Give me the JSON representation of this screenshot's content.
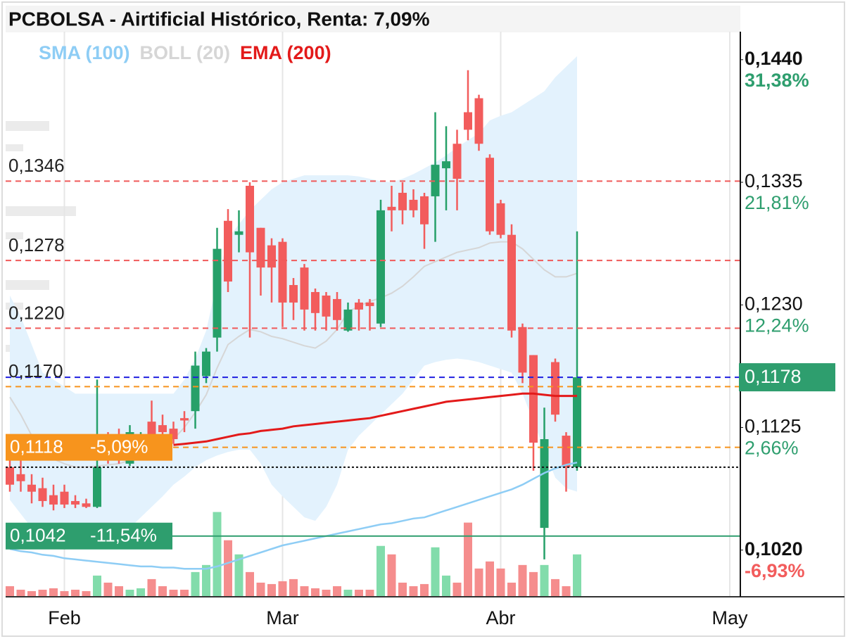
{
  "chart_data": {
    "type": "candlestick",
    "title": "PCBOLSA - Airtificial Histórico, Renta: 7,09%",
    "categories": [
      null,
      null,
      null,
      null,
      null,
      "Feb",
      null,
      null,
      null,
      null,
      null,
      null,
      null,
      null,
      null,
      null,
      null,
      null,
      null,
      null,
      null,
      null,
      null,
      null,
      null,
      "Mar",
      null,
      null,
      null,
      null,
      null,
      null,
      null,
      null,
      null,
      null,
      null,
      null,
      null,
      null,
      null,
      null,
      null,
      null,
      null,
      "Abr",
      null,
      null,
      null,
      null,
      null,
      null,
      null,
      null,
      null,
      null,
      null,
      null,
      null,
      null,
      null,
      null,
      null,
      null,
      null,
      null,
      "May"
    ],
    "open": [
      0.1101,
      0.1095,
      0.1086,
      0.1083,
      0.1077,
      0.108,
      0.1072,
      0.107,
      0.1067,
      0.1125,
      0.1122,
      0.1104,
      0.1116,
      0.114,
      0.1137,
      0.1134,
      0.1143,
      0.1149,
      0.1179,
      0.1212,
      0.1312,
      0.13,
      0.1342,
      0.1306,
      0.1291,
      0.1294,
      0.1257,
      0.1272,
      0.1251,
      0.1248,
      0.1245,
      0.1218,
      0.1242,
      0.1242,
      0.1224,
      0.1324,
      0.1336,
      0.133,
      0.1333,
      0.1333,
      0.1357,
      0.1378,
      0.1405,
      0.1417,
      0.1366,
      0.1327,
      0.13,
      0.1221,
      0.1197,
      0.1049,
      0.1191,
      0.1128,
      0.1101,
      null,
      null,
      null,
      null,
      null,
      null,
      null,
      null,
      null,
      null,
      null,
      null,
      null,
      null
    ],
    "high": [
      0.1116,
      0.1107,
      0.1095,
      0.1092,
      0.1086,
      0.1086,
      0.1077,
      0.1074,
      0.1176,
      0.1131,
      0.1134,
      0.1137,
      0.1131,
      0.1158,
      0.1146,
      0.114,
      0.1149,
      0.12,
      0.1203,
      0.1306,
      0.1322,
      0.1321,
      0.1345,
      0.1306,
      0.1297,
      0.1297,
      0.1263,
      0.1275,
      0.1254,
      0.1251,
      0.1251,
      0.1242,
      0.1245,
      0.1245,
      0.133,
      0.1342,
      0.1345,
      0.1339,
      0.1336,
      0.1405,
      0.1393,
      0.139,
      0.1441,
      0.142,
      0.1369,
      0.133,
      0.1309,
      0.1224,
      0.1197,
      0.1152,
      0.1194,
      0.1131,
      0.1303,
      null,
      null,
      null,
      null,
      null,
      null,
      null,
      null,
      null,
      null,
      null,
      null,
      null,
      null
    ],
    "low": [
      0.108,
      0.108,
      0.107,
      0.1067,
      0.1064,
      0.1066,
      0.1066,
      0.1066,
      0.1066,
      0.1104,
      0.1104,
      0.1102,
      0.1111,
      0.1119,
      0.1128,
      0.1121,
      0.1131,
      0.1134,
      0.1173,
      0.12,
      0.1251,
      0.1285,
      0.1212,
      0.1248,
      0.1242,
      0.1221,
      0.1227,
      0.1218,
      0.1218,
      0.1218,
      0.1218,
      0.1217,
      0.1218,
      0.1218,
      0.1221,
      0.1303,
      0.1309,
      0.1315,
      0.1288,
      0.1294,
      0.1321,
      0.1321,
      0.1381,
      0.1372,
      0.13,
      0.1297,
      0.1212,
      0.1173,
      0.1098,
      0.1022,
      0.114,
      0.108,
      0.1098,
      null,
      null,
      null,
      null,
      null,
      null,
      null,
      null,
      null,
      null,
      null,
      null,
      null,
      null
    ],
    "close": [
      0.1086,
      0.1089,
      0.108,
      0.1072,
      0.1069,
      0.1069,
      0.1069,
      0.1067,
      0.1101,
      0.111,
      0.1107,
      0.1131,
      0.1125,
      0.1123,
      0.1131,
      0.1125,
      0.1141,
      0.1188,
      0.12,
      0.1288,
      0.126,
      0.1303,
      0.1285,
      0.1272,
      0.1272,
      0.1242,
      0.1242,
      0.1236,
      0.1233,
      0.123,
      0.1227,
      0.1236,
      0.1236,
      0.1239,
      0.1321,
      0.1321,
      0.1321,
      0.1321,
      0.1309,
      0.136,
      0.1363,
      0.1348,
      0.139,
      0.1378,
      0.1303,
      0.13,
      0.1218,
      0.1182,
      0.1122,
      0.1125,
      0.1146,
      0.1101,
      0.1178,
      null,
      null,
      null,
      null,
      null,
      null,
      null,
      null,
      null,
      null,
      null,
      null,
      null,
      null
    ],
    "volume": [
      15,
      10,
      8,
      10,
      12,
      8,
      10,
      8,
      30,
      20,
      15,
      10,
      12,
      25,
      15,
      10,
      10,
      35,
      45,
      120,
      80,
      60,
      35,
      20,
      18,
      22,
      25,
      15,
      12,
      10,
      15,
      10,
      10,
      10,
      72,
      60,
      20,
      15,
      18,
      70,
      30,
      20,
      105,
      40,
      50,
      40,
      20,
      45,
      35,
      45,
      25,
      15,
      60,
      null,
      null,
      null,
      null,
      null,
      null,
      null,
      null,
      null,
      null,
      null,
      null,
      null,
      null
    ],
    "volume_lim": [
      0,
      800
    ],
    "up_color": "#26a069",
    "down_color": "#f25c5c",
    "volume_up_color": "#82dcab",
    "volume_down_color": "#f58d8d",
    "ylim": [
      0.099,
      0.1474
    ],
    "y2lim": [
      0.098,
      0.1464
    ],
    "y2ticks": [
      {
        "value": 0.144,
        "label": "0,1440"
      },
      {
        "value": 0.1335,
        "label": "0,1335"
      },
      {
        "value": 0.123,
        "label": "0,1230"
      },
      {
        "value": 0.1125,
        "label": "0,1125"
      },
      {
        "value": 0.102,
        "label": "0,1020"
      }
    ],
    "y2tick_pct_labels": [
      "31,38%",
      "21,81%",
      "12,24%",
      "2,66%",
      "-6,93%"
    ],
    "y2tick_pct_colors": [
      "#2e9e6e",
      "#2e9e6e",
      "#2e9e6e",
      "#2e9e6e",
      "#f25c5c"
    ],
    "indicators": [
      {
        "name": "SMA (100)",
        "color": "#8ecdf5",
        "values": [
          0.1031,
          0.1029,
          0.1028,
          0.1026,
          0.1025,
          0.1023,
          0.1022,
          0.1021,
          0.102,
          0.1019,
          0.1018,
          0.1017,
          0.1016,
          0.1016,
          0.1015,
          0.1015,
          0.1014,
          0.1014,
          0.1014,
          0.1016,
          0.1019,
          0.1022,
          0.1025,
          0.1028,
          0.1031,
          0.1034,
          0.1036,
          0.1038,
          0.104,
          0.1042,
          0.1044,
          0.1046,
          0.1048,
          0.105,
          0.1052,
          0.1053,
          0.1055,
          0.1057,
          0.1058,
          0.1061,
          0.1064,
          0.1067,
          0.107,
          0.1073,
          0.1076,
          0.1079,
          0.1082,
          0.1086,
          0.1091,
          0.1096,
          0.11,
          0.1103,
          0.1105,
          null,
          null,
          null,
          null,
          null,
          null,
          null,
          null,
          null,
          null,
          null,
          null,
          null,
          null
        ]
      },
      {
        "name": "BOLL (20)",
        "color": "#d6d6d6",
        "fill": "#e3f2fd",
        "upper": [
          0.1248,
          0.123,
          0.1206,
          0.1182,
          0.1176,
          0.117,
          0.1164,
          0.1164,
          0.1164,
          0.1164,
          0.1164,
          0.1164,
          0.1164,
          0.1164,
          0.1164,
          0.1164,
          0.1176,
          0.1194,
          0.1218,
          0.126,
          0.1297,
          0.1309,
          0.1321,
          0.133,
          0.1339,
          0.1345,
          0.1348,
          0.1351,
          0.1351,
          0.1351,
          0.1351,
          0.1351,
          0.135,
          0.1348,
          0.1346,
          0.1345,
          0.1348,
          0.1352,
          0.1357,
          0.1362,
          0.1368,
          0.1375,
          0.1381,
          0.1387,
          0.1398,
          0.1402,
          0.1405,
          0.1411,
          0.1417,
          0.1423,
          0.1435,
          0.1444,
          0.1453,
          null,
          null,
          null,
          null,
          null,
          null,
          null,
          null,
          null,
          null,
          null,
          null,
          null,
          null
        ],
        "middle": [
          0.1161,
          0.1146,
          0.1128,
          0.1113,
          0.1108,
          0.1104,
          0.1101,
          0.1101,
          0.1102,
          0.1103,
          0.1104,
          0.1107,
          0.1111,
          0.1116,
          0.112,
          0.1125,
          0.1135,
          0.1148,
          0.1163,
          0.1186,
          0.1206,
          0.1213,
          0.1219,
          0.1217,
          0.1213,
          0.1211,
          0.1208,
          0.1205,
          0.1203,
          0.1209,
          0.1219,
          0.1234,
          0.1239,
          0.1243,
          0.1246,
          0.125,
          0.1256,
          0.1264,
          0.1273,
          0.1277,
          0.1281,
          0.1285,
          0.1287,
          0.1289,
          0.1293,
          0.1294,
          0.1294,
          0.1288,
          0.1279,
          0.127,
          0.1264,
          0.1264,
          0.1267,
          null,
          null,
          null,
          null,
          null,
          null,
          null,
          null,
          null,
          null,
          null,
          null,
          null,
          null
        ],
        "lower": [
          0.1073,
          0.1061,
          0.1049,
          0.1043,
          0.104,
          0.1038,
          0.1037,
          0.1038,
          0.104,
          0.1042,
          0.1043,
          0.1049,
          0.1058,
          0.1067,
          0.1076,
          0.1086,
          0.1093,
          0.1101,
          0.1107,
          0.1111,
          0.1114,
          0.1116,
          0.1116,
          0.1104,
          0.1086,
          0.1076,
          0.1067,
          0.1058,
          0.1055,
          0.1067,
          0.1086,
          0.1116,
          0.1128,
          0.1137,
          0.1146,
          0.1155,
          0.1164,
          0.1176,
          0.1188,
          0.1191,
          0.1193,
          0.1194,
          0.1193,
          0.1191,
          0.1188,
          0.1185,
          0.1182,
          0.1164,
          0.114,
          0.1116,
          0.1092,
          0.1083,
          0.108,
          null,
          null,
          null,
          null,
          null,
          null,
          null,
          null,
          null,
          null,
          null,
          null,
          null,
          null
        ]
      },
      {
        "name": "EMA (200)",
        "color": "#e31a1a",
        "values": [
          null,
          null,
          null,
          null,
          null,
          null,
          null,
          null,
          null,
          null,
          null,
          null,
          null,
          null,
          null,
          0.112,
          0.1121,
          0.1122,
          0.1123,
          0.1125,
          0.1127,
          0.1129,
          0.113,
          0.1132,
          0.1133,
          0.1134,
          0.1136,
          0.1137,
          0.1138,
          0.1139,
          0.114,
          0.1141,
          0.1142,
          0.1143,
          0.1145,
          0.1147,
          0.1149,
          0.1151,
          0.1153,
          0.1155,
          0.1157,
          0.1158,
          0.1159,
          0.116,
          0.1161,
          0.1162,
          0.1163,
          0.1164,
          0.1164,
          0.1163,
          0.1162,
          0.1162,
          0.1162,
          null,
          null,
          null,
          null,
          null,
          null,
          null,
          null,
          null,
          null,
          null,
          null,
          null,
          null
        ]
      }
    ],
    "levels": [
      {
        "value": 0.1346,
        "label": "0,1346",
        "color": "#f05a5a",
        "style": "dashed"
      },
      {
        "value": 0.1278,
        "label": "0,1278",
        "color": "#f05a5a",
        "style": "dashed"
      },
      {
        "value": 0.122,
        "label": "0,1220",
        "color": "#f05a5a",
        "style": "dashed"
      },
      {
        "value": 0.117,
        "label": "0,1170",
        "color": "#f7941d",
        "style": "dashed"
      },
      {
        "value": 0.1118,
        "label": "0,1118",
        "pct_label": "-5,09%",
        "color": "#f7941d",
        "style": "dashed",
        "boxed": true
      },
      {
        "value": 0.1101,
        "color": "#111111",
        "style": "dotted"
      },
      {
        "value": 0.1042,
        "label": "0,1042",
        "pct_label": "-11,54%",
        "color": "#2e9e6e",
        "style": "solid",
        "boxed": true
      }
    ],
    "last_price": {
      "value": 0.1178,
      "label": "0,1178",
      "line_color": "#1f1fe0",
      "box_color": "#2e9e6e"
    }
  }
}
